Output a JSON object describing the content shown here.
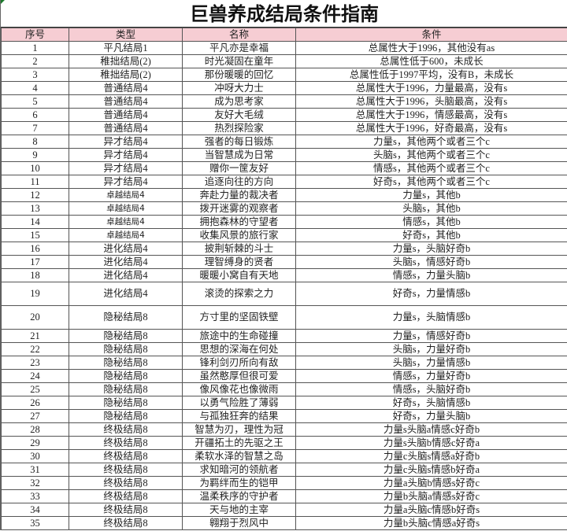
{
  "title": "巨兽养成结局条件指南",
  "colors": {
    "header_bg": "#f6cdd3",
    "grid": "#555555"
  },
  "headers": [
    "序号",
    "类型",
    "名称",
    "条件"
  ],
  "rows": [
    [
      "1",
      "平凡结局1",
      "平凡亦是幸福",
      "总属性大于1996，其他没有as"
    ],
    [
      "2",
      "稚拙结局(2)",
      "时光凝固在童年",
      "总属性低于600，未成长"
    ],
    [
      "3",
      "稚拙结局(2)",
      "那份暖暖的回忆",
      "总属性低于1997平均，没有B，未成长"
    ],
    [
      "4",
      "普通结局4",
      "冲呀大力士",
      "总属性大于1996，力量最高，没有s"
    ],
    [
      "5",
      "普通结局4",
      "成为思考家",
      "总属性大于1996，头脑最高，没有s"
    ],
    [
      "6",
      "普通结局4",
      "友好大毛绒",
      "总属性大于1996，情感最高，没有s"
    ],
    [
      "7",
      "普通结局4",
      "热烈探险家",
      "总属性大于1996，好奇最高，没有s"
    ],
    [
      "8",
      "异才结局4",
      "强者的每日锻炼",
      "力量s，其他两个或者三个c"
    ],
    [
      "9",
      "异才结局4",
      "当智慧成为日常",
      "头脑s，其他两个或者三个c"
    ],
    [
      "10",
      "异才结局4",
      "赠你一筐友好",
      "情感s，其他两个或者三个c"
    ],
    [
      "11",
      "异才结局4",
      "追逐向往的方向",
      "好奇s，其他两个或者三个c"
    ],
    [
      "12",
      "卓越结局4",
      "奔赴力量的裁决者",
      "力量s，其他b"
    ],
    [
      "13",
      "卓越结局4",
      "拨开迷雾的观察者",
      "头脑s，其他b"
    ],
    [
      "14",
      "卓越结局4",
      "拥抱森林的守望者",
      "情感s，其他b"
    ],
    [
      "15",
      "卓越结局4",
      "收集风景的旅行家",
      "好奇s，其他b"
    ],
    [
      "16",
      "进化结局4",
      "披荆斩棘的斗士",
      "力量s，头脑好奇b"
    ],
    [
      "17",
      "进化结局4",
      "理智缚身的贤者",
      "头脑s，情感好奇b"
    ],
    [
      "18",
      "进化结局4",
      "暖暖小窝自有天地",
      "情感s，力量头脑b"
    ],
    [
      "19",
      "进化结局4",
      "滚烫的探索之力",
      "好奇s，力量情感b"
    ],
    [
      "20",
      "隐秘结局8",
      "方寸里的坚固铁壁",
      "力量s，头脑情感b"
    ],
    [
      "21",
      "隐秘结局8",
      "旅途中的生命碰撞",
      "力量s，情感好奇b"
    ],
    [
      "22",
      "隐秘结局8",
      "思想的深海在何处",
      "头脑s，力量好奇b"
    ],
    [
      "23",
      "隐秘结局8",
      "锋利剑刃所向有敌",
      "头脑s，力量情感b"
    ],
    [
      "24",
      "隐秘结局8",
      "虽然憨厚但很可爱",
      "情感s，力量好奇b"
    ],
    [
      "25",
      "隐秘结局8",
      "像风像花也像微雨",
      "情感s，头脑好奇b"
    ],
    [
      "26",
      "隐秘结局8",
      "以勇气险胜了薄弱",
      "好奇s，头脑情感b"
    ],
    [
      "27",
      "隐秘结局8",
      "与孤独狂奔的结果",
      "好奇s，力量头脑b"
    ],
    [
      "28",
      "终极结局8",
      "智慧为刃，理性为冠",
      "力量s头脑a情感c好奇b"
    ],
    [
      "29",
      "终极结局8",
      "开疆拓土的先驱之王",
      "力量s头脑b情感c好奇a"
    ],
    [
      "30",
      "终极结局8",
      "柔软水泽的智慧之岛",
      "力量c头脑s情感a好奇b"
    ],
    [
      "31",
      "终极结局8",
      "求知暗河的领航者",
      "力量c头脑s情感b好奇a"
    ],
    [
      "32",
      "终极结局8",
      "为羁绊而生的铠甲",
      "力量a头脑b情感s好奇c"
    ],
    [
      "33",
      "终极结局8",
      "温柔秩序的守护者",
      "力量b头脑a情感s好奇c"
    ],
    [
      "34",
      "终极结局8",
      "天与地的主宰",
      "力量a头脑c情感b好奇s"
    ],
    [
      "35",
      "终极结局8",
      "翱翔于烈风中",
      "力量b头脑c情感a好奇s"
    ]
  ]
}
